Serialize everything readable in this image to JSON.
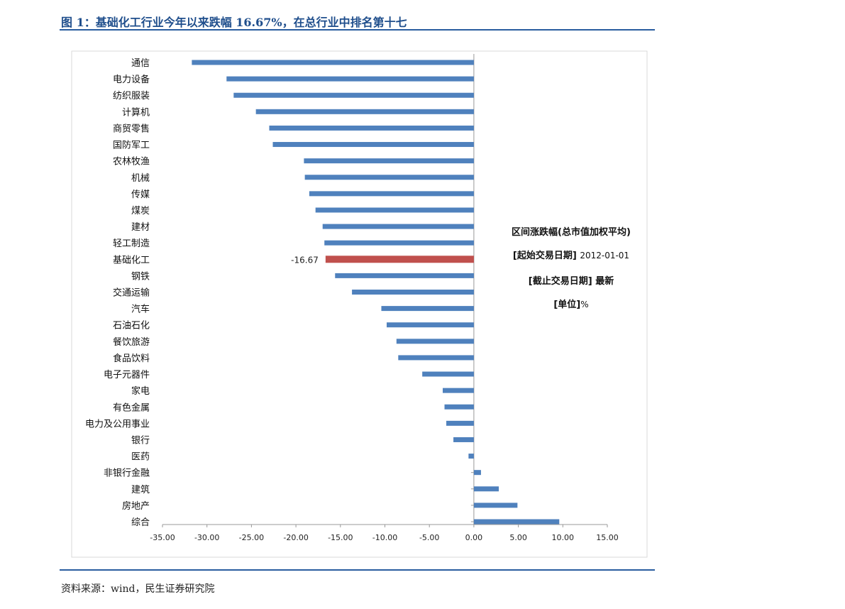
{
  "title": "图 1：基础化工行业今年以来跌幅 16.67%，在总行业中排名第十七",
  "source": "资料来源：wind，民生证券研究院",
  "annotation": {
    "line1": "区间涨跌幅(总市值加权平均)",
    "line2_label": "[起始交易日期]",
    "line2_value": "2012-01-01",
    "line3_label": "[截止交易日期]",
    "line3_value": "最新",
    "line4_label": "[单位]",
    "line4_value": "%"
  },
  "colors": {
    "bar": "#4f81bd",
    "highlight": "#c0504d",
    "title": "#1f4e8c"
  },
  "chart_data": {
    "type": "bar",
    "orientation": "horizontal",
    "categories": [
      "通信",
      "电力设备",
      "纺织服装",
      "计算机",
      "商贸零售",
      "国防军工",
      "农林牧渔",
      "机械",
      "传媒",
      "煤炭",
      "建材",
      "轻工制造",
      "基础化工",
      "钢铁",
      "交通运输",
      "汽车",
      "石油石化",
      "餐饮旅游",
      "食品饮料",
      "电子元器件",
      "家电",
      "有色金属",
      "电力及公用事业",
      "银行",
      "医药",
      "非银行金融",
      "建筑",
      "房地产",
      "综合"
    ],
    "values": [
      -31.7,
      -27.8,
      -27.0,
      -24.5,
      -23.0,
      -22.6,
      -19.1,
      -19.0,
      -18.5,
      -17.8,
      -17.0,
      -16.8,
      -16.67,
      -15.6,
      -13.7,
      -10.4,
      -9.8,
      -8.7,
      -8.5,
      -5.8,
      -3.5,
      -3.3,
      -3.1,
      -2.3,
      -0.6,
      0.8,
      2.8,
      4.9,
      9.6
    ],
    "highlight": "基础化工",
    "data_labels": [
      {
        "category": "基础化工",
        "label": "-16.67"
      }
    ],
    "xlim": [
      -35,
      15
    ],
    "xticks": [
      "-35.00",
      "-30.00",
      "-25.00",
      "-20.00",
      "-15.00",
      "-10.00",
      "-5.00",
      "0.00",
      "5.00",
      "10.00",
      "15.00"
    ],
    "grid": false
  }
}
